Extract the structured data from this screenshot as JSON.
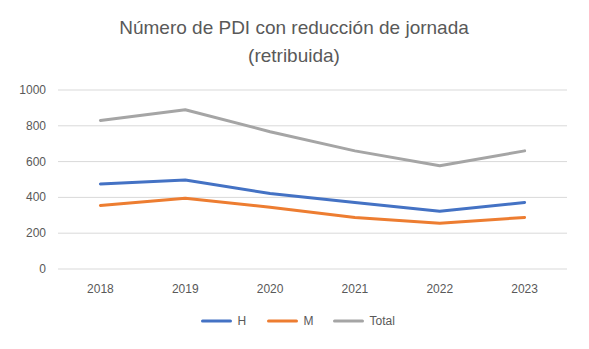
{
  "chart_data": {
    "type": "line",
    "title": "Número de PDI con reducción de jornada (retribuida)",
    "categories": [
      "2018",
      "2019",
      "2020",
      "2021",
      "2022",
      "2023"
    ],
    "series": [
      {
        "name": "H",
        "color": "#4472c4",
        "values": [
          475,
          497,
          422,
          372,
          322,
          372
        ]
      },
      {
        "name": "M",
        "color": "#ed7d31",
        "values": [
          355,
          395,
          345,
          288,
          255,
          288
        ]
      },
      {
        "name": "Total",
        "color": "#a5a5a5",
        "values": [
          830,
          890,
          767,
          660,
          577,
          660
        ]
      }
    ],
    "ylim": [
      0,
      1000
    ],
    "yticks": [
      0,
      200,
      400,
      600,
      800,
      1000
    ],
    "grid": true,
    "legend": "bottom"
  }
}
